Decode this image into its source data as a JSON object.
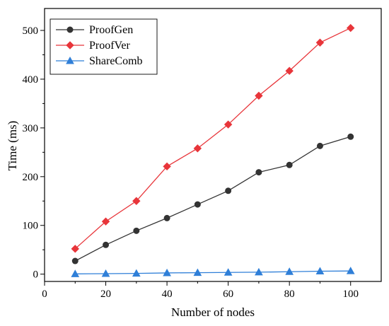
{
  "chart_data": {
    "type": "line",
    "title": "",
    "xlabel": "Number of nodes",
    "ylabel": "Time (ms)",
    "xlim": [
      0,
      110
    ],
    "ylim": [
      -15,
      545
    ],
    "xticks": [
      0,
      20,
      40,
      60,
      80,
      100
    ],
    "yticks": [
      0,
      100,
      200,
      300,
      400,
      500
    ],
    "x": [
      10,
      20,
      30,
      40,
      50,
      60,
      70,
      80,
      90,
      100
    ],
    "grid": false,
    "legend_position": "top-left",
    "series": [
      {
        "name": "ProofGen",
        "color": "#333333",
        "marker": "circle",
        "values": [
          27,
          60,
          89,
          115,
          143,
          171,
          209,
          224,
          263,
          282
        ]
      },
      {
        "name": "ProofVer",
        "color": "#e8353a",
        "marker": "diamond",
        "values": [
          52,
          108,
          150,
          221,
          258,
          307,
          366,
          417,
          475,
          505
        ]
      },
      {
        "name": "ShareComb",
        "color": "#2f7fd8",
        "marker": "triangle",
        "values": [
          0.5,
          1,
          1.5,
          2.5,
          3,
          3.5,
          4,
          5,
          6,
          6.5
        ]
      }
    ]
  }
}
